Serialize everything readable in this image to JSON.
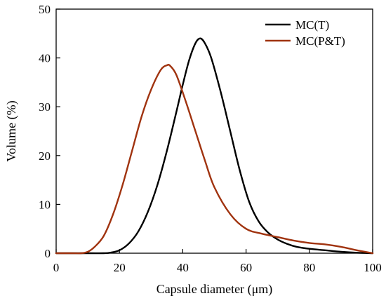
{
  "chart_data": {
    "type": "line",
    "title": "",
    "xlabel": "Capsule diameter (μm)",
    "ylabel": "Volume (%)",
    "xlim": [
      0,
      100
    ],
    "ylim": [
      0,
      50
    ],
    "xticks": [
      0,
      20,
      40,
      60,
      80,
      100
    ],
    "yticks": [
      0,
      10,
      20,
      30,
      40,
      50
    ],
    "grid": false,
    "legend_position": "top-right",
    "series": [
      {
        "name": "MC(T)",
        "color": "#000000",
        "x": [
          0,
          10,
          15,
          17,
          20,
          23,
          26,
          29,
          32,
          35,
          38,
          40,
          42,
          44,
          45.5,
          47,
          49,
          52,
          55,
          58,
          61,
          64,
          67,
          70,
          73,
          76,
          80,
          85,
          90,
          95,
          100
        ],
        "y": [
          0,
          0,
          0,
          0.1,
          0.6,
          2.0,
          4.5,
          8.5,
          14,
          21,
          29,
          34.5,
          39.5,
          43,
          44,
          43,
          40,
          33,
          25,
          17,
          10.5,
          6.5,
          4.2,
          2.8,
          1.9,
          1.3,
          0.9,
          0.6,
          0.3,
          0.1,
          0
        ]
      },
      {
        "name": "MC(P&T)",
        "color": "#a0330f",
        "x": [
          0,
          5,
          8,
          10,
          12,
          15,
          18,
          21,
          24,
          27,
          30,
          33,
          35,
          36,
          38,
          41,
          44,
          47,
          50,
          55,
          60,
          65,
          70,
          75,
          80,
          85,
          90,
          95,
          100
        ],
        "y": [
          0,
          0,
          0,
          0.3,
          1.2,
          3.5,
          8,
          14,
          21,
          28,
          33.5,
          37.5,
          38.5,
          38.4,
          36.5,
          31,
          25,
          19,
          13.5,
          8,
          5,
          4,
          3.3,
          2.6,
          2.1,
          1.8,
          1.3,
          0.6,
          0
        ]
      }
    ]
  }
}
